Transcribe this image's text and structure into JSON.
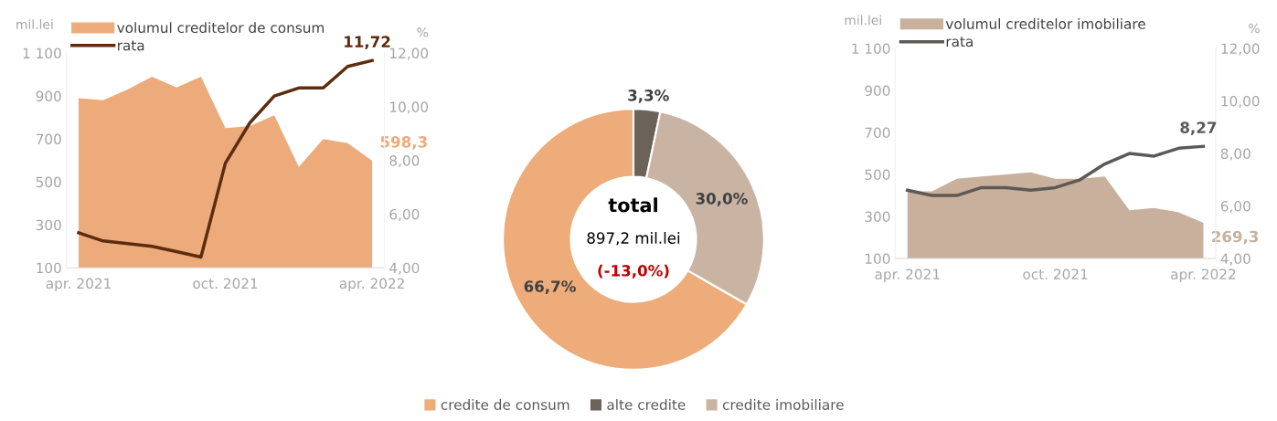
{
  "chart_data": [
    {
      "type": "area",
      "categories": [
        "apr. 2021",
        null,
        null,
        null,
        null,
        null,
        "oct. 2021",
        null,
        null,
        null,
        null,
        null,
        "apr. 2022"
      ],
      "ylabel": "mil.lei",
      "y2label": "%",
      "ylim": [
        100,
        1100
      ],
      "yticks": [
        100,
        300,
        500,
        700,
        900,
        {
          "value": 1100,
          "label": "1 100"
        }
      ],
      "y2lim": [
        4,
        12
      ],
      "y2ticks": [
        {
          "value": 4,
          "label": "4,00"
        },
        {
          "value": 6,
          "label": "6,00"
        },
        {
          "value": 8,
          "label": "8,00"
        },
        {
          "value": 10,
          "label": "10,00"
        },
        {
          "value": 12,
          "label": "12,00"
        }
      ],
      "legend": "top left",
      "series": [
        {
          "name": "volumul creditelor de consum",
          "type": "area",
          "color": "#edab7b",
          "values": [
            890,
            880,
            930,
            990,
            940,
            990,
            750,
            760,
            810,
            570,
            700,
            680,
            598.3
          ],
          "value_labels": [
            null,
            null,
            null,
            null,
            null,
            null,
            null,
            null,
            null,
            null,
            null,
            null,
            "598,3"
          ]
        },
        {
          "name": "rata",
          "type": "line",
          "axis": "y2",
          "color": "#5c2c0f",
          "values": [
            5.3,
            5.0,
            4.9,
            4.8,
            4.6,
            4.4,
            7.9,
            9.4,
            10.4,
            10.7,
            10.7,
            11.5,
            11.72
          ],
          "value_labels": [
            null,
            null,
            null,
            null,
            null,
            null,
            null,
            null,
            null,
            null,
            null,
            null,
            "11,72"
          ]
        }
      ]
    },
    {
      "type": "donut",
      "categories": [
        "credite de consum",
        "alte credite",
        "credite imobiliare"
      ],
      "values": [
        66.7,
        3.3,
        30.0
      ],
      "colors": [
        "#edac7a",
        "#6b635a",
        "#c9b3a3"
      ],
      "value_labels": [
        "66,7%",
        "3,3%",
        "30,0%"
      ],
      "legend": "bottom",
      "annotations": [
        "total",
        "897,2 mil.lei",
        "(-13,0%)"
      ]
    },
    {
      "type": "area",
      "categories": [
        "apr. 2021",
        null,
        null,
        null,
        null,
        null,
        "oct. 2021",
        null,
        null,
        null,
        null,
        null,
        "apr. 2022"
      ],
      "ylabel": "mil.lei",
      "y2label": "%",
      "ylim": [
        100,
        1100
      ],
      "yticks": [
        100,
        300,
        500,
        700,
        900,
        {
          "value": 1100,
          "label": "1 100"
        }
      ],
      "y2lim": [
        4,
        12
      ],
      "y2ticks": [
        {
          "value": 4,
          "label": "4,00"
        },
        {
          "value": 6,
          "label": "6,00"
        },
        {
          "value": 8,
          "label": "8,00"
        },
        {
          "value": 10,
          "label": "10,00"
        },
        {
          "value": 12,
          "label": "12,00"
        }
      ],
      "legend": "top left",
      "series": [
        {
          "name": "volumul creditelor imobiliare",
          "type": "area",
          "color": "#c8b09d",
          "values": [
            420,
            420,
            480,
            490,
            500,
            510,
            480,
            480,
            490,
            330,
            340,
            320,
            269.3
          ],
          "value_labels": [
            null,
            null,
            null,
            null,
            null,
            null,
            null,
            null,
            null,
            null,
            null,
            null,
            "269,3"
          ]
        },
        {
          "name": "rata",
          "type": "line",
          "axis": "y2",
          "color": "#5d5955",
          "values": [
            6.6,
            6.4,
            6.4,
            6.7,
            6.7,
            6.6,
            6.7,
            7.0,
            7.6,
            8.0,
            7.9,
            8.2,
            8.27
          ],
          "value_labels": [
            null,
            null,
            null,
            null,
            null,
            null,
            null,
            null,
            null,
            null,
            null,
            null,
            "8,27"
          ]
        }
      ]
    }
  ]
}
